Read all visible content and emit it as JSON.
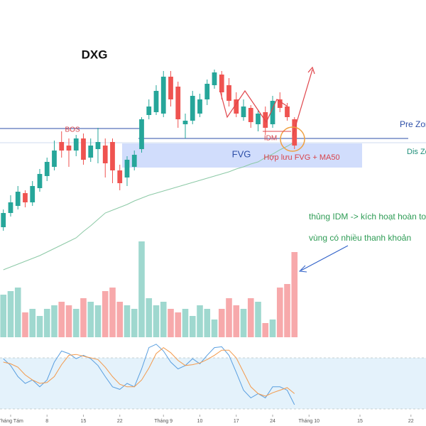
{
  "chart_data": [
    {
      "type": "candlestick",
      "title": "DXG",
      "x": [
        0,
        1,
        2,
        3,
        4,
        5,
        6,
        7,
        8,
        9,
        10,
        11,
        12,
        13,
        14,
        15,
        16,
        17,
        18,
        19,
        20,
        21,
        22,
        23,
        24,
        25,
        26,
        27,
        28,
        29,
        30,
        31,
        32,
        33,
        34,
        35,
        36,
        37,
        38,
        39,
        40
      ],
      "open": [
        20,
        40,
        50,
        68,
        55,
        75,
        92,
        105,
        140,
        135,
        128,
        145,
        118,
        130,
        135,
        140,
        100,
        90,
        105,
        130,
        178,
        182,
        180,
        232,
        218,
        165,
        170,
        180,
        200,
        220,
        235,
        220,
        200,
        175,
        188,
        165,
        182,
        165,
        200,
        190,
        172
      ],
      "high": [
        45,
        65,
        78,
        72,
        85,
        102,
        118,
        142,
        155,
        145,
        150,
        152,
        145,
        160,
        145,
        145,
        108,
        120,
        128,
        175,
        200,
        220,
        240,
        240,
        225,
        180,
        212,
        208,
        228,
        242,
        240,
        230,
        210,
        200,
        192,
        185,
        190,
        205,
        210,
        195,
        175
      ],
      "low": [
        15,
        35,
        45,
        48,
        50,
        70,
        85,
        100,
        118,
        105,
        120,
        108,
        112,
        110,
        90,
        82,
        72,
        78,
        100,
        125,
        172,
        178,
        175,
        190,
        160,
        145,
        165,
        175,
        192,
        215,
        200,
        190,
        175,
        170,
        160,
        155,
        150,
        160,
        182,
        170,
        130
      ],
      "close": [
        40,
        55,
        70,
        55,
        78,
        95,
        112,
        128,
        128,
        128,
        145,
        115,
        135,
        140,
        110,
        100,
        82,
        115,
        122,
        172,
        190,
        212,
        232,
        200,
        172,
        170,
        205,
        200,
        222,
        238,
        210,
        198,
        180,
        190,
        168,
        180,
        160,
        198,
        188,
        175,
        135
      ],
      "up_color": "#26a69a",
      "down_color": "#ef5350",
      "ma": {
        "color": "#8cc9a6",
        "values": [
          -40,
          -36,
          -32,
          -28,
          -24,
          -20,
          -15,
          -10,
          -5,
          0,
          5,
          14,
          22,
          31,
          40,
          44,
          48,
          52,
          57,
          61,
          65,
          68,
          71,
          74,
          77,
          80,
          83,
          86,
          89,
          92,
          95,
          98,
          102,
          105,
          109,
          112,
          118,
          123,
          129,
          134,
          140
        ]
      },
      "xlim": [
        -0.46,
        58.07
      ],
      "ylim": [
        -140,
        340
      ],
      "xticks": [
        {
          "value": 1,
          "label": "Tháng Tám"
        },
        {
          "value": 6,
          "label": "8"
        },
        {
          "value": 11,
          "label": "15"
        },
        {
          "value": 16,
          "label": "22"
        },
        {
          "value": 22,
          "label": "Tháng 9"
        },
        {
          "value": 27,
          "label": "10"
        },
        {
          "value": 32,
          "label": "17"
        },
        {
          "value": 37,
          "label": "24"
        },
        {
          "value": 42,
          "label": "Tháng 10"
        },
        {
          "value": 49,
          "label": "15"
        },
        {
          "value": 56,
          "label": "22"
        }
      ],
      "annotations": {
        "bos": "BOS",
        "pre_zone": "Pre Zone",
        "idm": "IDM",
        "fvg": "FVG",
        "confluence": "Hợp lưu FVG + MA50",
        "dis_zone": "Dis Zone",
        "note_1": "thủng IDM -> kích hoạt hoàn toàn",
        "note_2": "vùng có nhiều thanh khoản"
      }
    },
    {
      "type": "bar",
      "x": [
        0,
        1,
        2,
        3,
        4,
        5,
        6,
        7,
        8,
        9,
        10,
        11,
        12,
        13,
        14,
        15,
        16,
        17,
        18,
        19,
        20,
        21,
        22,
        23,
        24,
        25,
        26,
        27,
        28,
        29,
        30,
        31,
        32,
        33,
        34,
        35,
        36,
        37,
        38,
        39,
        40
      ],
      "values": [
        60,
        65,
        70,
        35,
        40,
        30,
        40,
        45,
        50,
        45,
        40,
        55,
        50,
        45,
        65,
        70,
        50,
        45,
        40,
        135,
        55,
        45,
        50,
        40,
        35,
        40,
        30,
        45,
        40,
        25,
        40,
        55,
        45,
        40,
        55,
        50,
        20,
        25,
        70,
        75,
        120
      ],
      "up_color": "#9fd8cf",
      "down_color": "#f7a9ab",
      "ylim": [
        0,
        140
      ]
    },
    {
      "type": "line",
      "x": [
        0,
        1,
        2,
        3,
        4,
        5,
        6,
        7,
        8,
        9,
        10,
        11,
        12,
        13,
        14,
        15,
        16,
        17,
        18,
        19,
        20,
        21,
        22,
        23,
        24,
        25,
        26,
        27,
        28,
        29,
        30,
        31,
        32,
        33,
        34,
        35,
        36,
        37,
        38,
        39,
        40
      ],
      "series": [
        {
          "color": "#5a9fe0",
          "values": [
            79,
            71,
            58,
            50,
            54,
            46,
            54,
            75,
            88,
            85,
            79,
            83,
            79,
            71,
            58,
            46,
            43,
            50,
            46,
            67,
            92,
            96,
            88,
            75,
            67,
            71,
            79,
            73,
            83,
            92,
            93,
            83,
            63,
            42,
            33,
            38,
            33,
            46,
            46,
            42,
            25
          ]
        },
        {
          "color": "#f39a4c",
          "values": [
            75,
            73,
            69,
            60,
            54,
            50,
            51,
            58,
            72,
            83,
            84,
            82,
            80,
            78,
            69,
            58,
            49,
            46,
            46,
            54,
            68,
            85,
            92,
            86,
            77,
            71,
            72,
            74,
            78,
            83,
            89,
            89,
            80,
            63,
            46,
            38,
            35,
            39,
            42,
            45,
            38
          ]
        }
      ],
      "band": [
        20,
        80
      ],
      "band_color": "#e4f2fb",
      "ylim": [
        0,
        100
      ]
    }
  ]
}
